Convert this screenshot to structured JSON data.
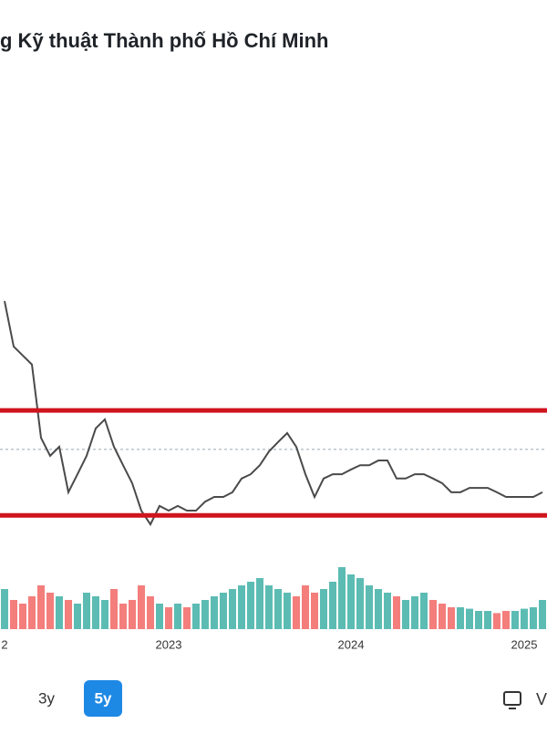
{
  "title": "g Kỹ thuật Thành phố Hồ Chí Minh",
  "chart_data": {
    "type": "line",
    "categories": [
      "2",
      null,
      null,
      null,
      null,
      null,
      null,
      null,
      null,
      null,
      null,
      null,
      null,
      null,
      null,
      null,
      null,
      null,
      "2023",
      null,
      null,
      null,
      null,
      null,
      null,
      null,
      null,
      null,
      null,
      null,
      null,
      null,
      null,
      null,
      null,
      null,
      null,
      null,
      "2024",
      null,
      null,
      null,
      null,
      null,
      null,
      null,
      null,
      null,
      null,
      null,
      null,
      null,
      null,
      null,
      null,
      null,
      null,
      "2025",
      null,
      null
    ],
    "series": [
      {
        "name": "price",
        "color": "#4a4a4a",
        "values": [
          57.4,
          46.8,
          44.7,
          42.6,
          25.5,
          21.3,
          23.4,
          12.8,
          17.0,
          21.3,
          27.7,
          29.8,
          23.4,
          19.1,
          14.9,
          8.5,
          5.3,
          9.6,
          8.5,
          9.6,
          8.5,
          8.5,
          10.6,
          11.7,
          11.7,
          12.8,
          16.0,
          17.0,
          19.1,
          22.3,
          24.5,
          26.6,
          23.4,
          17.0,
          11.7,
          16.0,
          17.0,
          17.0,
          18.1,
          19.1,
          19.1,
          20.2,
          20.2,
          16.0,
          16.0,
          17.0,
          17.0,
          16.0,
          14.9,
          12.8,
          12.8,
          13.8,
          13.8,
          13.8,
          12.8,
          11.7,
          11.7,
          11.7,
          11.7,
          12.8
        ]
      }
    ],
    "ylim": [
      0,
      100
    ],
    "levels": [
      {
        "value": 31.9,
        "color": "#d0141e"
      },
      {
        "value": 7.4,
        "color": "#d0141e"
      }
    ],
    "reference_line": {
      "value": 22.8,
      "color": "#9aa6b2"
    },
    "volume": {
      "values": [
        55,
        40,
        35,
        45,
        60,
        50,
        45,
        40,
        35,
        50,
        45,
        40,
        55,
        35,
        40,
        60,
        45,
        35,
        30,
        35,
        30,
        35,
        40,
        45,
        50,
        55,
        60,
        65,
        70,
        60,
        55,
        50,
        45,
        60,
        50,
        55,
        65,
        85,
        75,
        70,
        60,
        55,
        50,
        45,
        40,
        45,
        50,
        40,
        35,
        30,
        30,
        28,
        25,
        25,
        22,
        25,
        25,
        28,
        30,
        40
      ],
      "ylim": [
        0,
        100
      ],
      "up_color": "#26a69a",
      "down_color": "#ef5350"
    }
  },
  "toolbar": {
    "range_buttons": [
      {
        "label": "3y",
        "active": false
      },
      {
        "label": "5y",
        "active": true
      }
    ],
    "view_label": "V"
  }
}
